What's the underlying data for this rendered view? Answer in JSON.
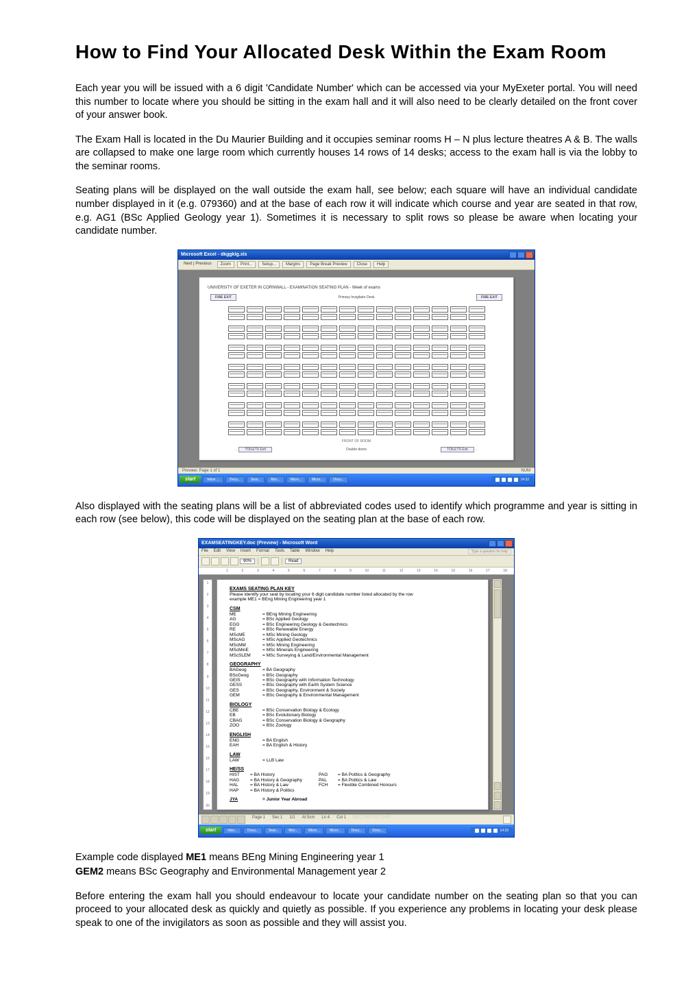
{
  "title": "How to Find Your Allocated Desk Within the Exam Room",
  "para1": "Each year you will be issued with a 6 digit 'Candidate Number' which can be accessed via your MyExeter portal.  You will need this number to locate where you should be sitting in the exam hall and it will also need to be clearly detailed on the front cover of your answer book.",
  "para2": "The Exam Hall is located in the Du Maurier Building and it occupies seminar rooms H – N plus lecture theatres A & B.  The walls are collapsed to make one large room which currently houses 14 rows of 14 desks; access to the exam hall is via the lobby to the seminar rooms.",
  "para3": "Seating plans will be displayed on the wall outside the exam hall, see below; each square will have an individual candidate number displayed in it (e.g. 079360) and at the base of each row it will indicate which course and year are seated in that row, e.g. AG1 (BSc Applied Geology year 1).  Sometimes it is necessary to split rows so please be aware when locating your candidate number.",
  "para4": "Also displayed with the seating plans will be a list of abbreviated codes used to identify which programme and year is sitting in each row (see below), this code will be displayed on the seating plan at the base of each row.",
  "para5a": "Example code displayed ",
  "para5b": "ME1",
  "para5c": " means BEng Mining Engineering year 1",
  "para6a": "GEM2",
  "para6b": "  means BSc Geography and Environmental Management year 2",
  "para7": "Before entering the exam hall you should endeavour to locate your candidate number on the seating plan so that you can proceed to your allocated desk as quickly and quietly as possible.  If you experience any problems in locating your desk please speak to one of the invigilators as soon as possible and they will assist you.",
  "screenshot1": {
    "titlebar": "Microsoft Excel - dkggklg.xls",
    "toolbar_buttons": [
      "Zoom",
      "Print...",
      "Setup...",
      "Margins",
      "Page Break Preview",
      "Close",
      "Help"
    ],
    "doc_heading": "UNIVERSITY OF EXETER IN CORNWALL - EXAMINATION SEATING PLAN - Week of exams",
    "legend_left": "FIRE EXIT",
    "legend_mid": "Primary Invigilator Desk",
    "legend_right": "FIRE EXIT",
    "rows": 14,
    "cols": 14,
    "footer": "FRONT OF ROOM",
    "door_left": "TOILETS Exit",
    "door_mid": "Double doors",
    "door_right": "TOILETS Exit",
    "status_left": "Preview: Page 1 of 1",
    "status_right": "NUM",
    "taskbar": {
      "start": "start",
      "items": [
        "Inbox ...",
        "Docu...",
        "Sear...",
        "Micr...",
        "Micro...",
        "Micro...",
        "Docu..."
      ],
      "tray_time": "14:32"
    },
    "colors": {
      "titlebar_top": "#2a6fd6",
      "titlebar_bottom": "#0b3ea8",
      "taskbar_top": "#3b8afd",
      "taskbar_bottom": "#245edb",
      "start_top": "#5ac24d",
      "start_bottom": "#2a8a1d",
      "chrome": "#ece9d8",
      "docbg": "#808080",
      "page": "#ffffff"
    }
  },
  "screenshot2": {
    "titlebar": "EXAMSEATINGKEY.doc (Preview) - Microsoft Word",
    "menus": [
      "File",
      "Edit",
      "View",
      "Insert",
      "Format",
      "Tools",
      "Table",
      "Window",
      "Help"
    ],
    "type_help": "Type a question for help",
    "zoom": "90%",
    "read": "Read",
    "ruler_marks": [
      "1",
      "2",
      "3",
      "4",
      "5",
      "6",
      "7",
      "8",
      "9",
      "10",
      "11",
      "12",
      "13",
      "14",
      "15",
      "16",
      "17",
      "18"
    ],
    "side_marks": [
      "1",
      "2",
      "3",
      "4",
      "5",
      "6",
      "7",
      "8",
      "9",
      "10",
      "11",
      "12",
      "13",
      "14",
      "15",
      "16",
      "17",
      "18",
      "19",
      "20"
    ],
    "pkey_title": "EXAMS SEATING PLAN KEY",
    "pkey_sub1": "Please identify your seat by locating your 6 digit candidate number listed allocated by the row",
    "pkey_sub2": "example ME1 = BEng Mining Engineering year 1",
    "sections": [
      {
        "title": "CSM",
        "codes": [
          {
            "code": "ME",
            "desc": "= BEng Mining Engineering"
          },
          {
            "code": "AG",
            "desc": "= BSc Applied Geology"
          },
          {
            "code": "EGG",
            "desc": "= BSc Engineering Geology & Geotechnics"
          },
          {
            "code": "RE",
            "desc": "= BSc Renewable Energy"
          },
          {
            "code": "MScME",
            "desc": "= MSc Mining Geology"
          },
          {
            "code": "MScAG",
            "desc": "= MSc Applied Geotechnics"
          },
          {
            "code": "MScMM",
            "desc": "= MSc Mining Engineering"
          },
          {
            "code": "MScMinE",
            "desc": "= MSc Minerals Engineering"
          },
          {
            "code": "MScSLEM",
            "desc": "= MSc Surveying & Land/Environmental Management"
          }
        ]
      },
      {
        "title": "GEOGRAPHY",
        "codes": [
          {
            "code": "BAGeog",
            "desc": "= BA Geography"
          },
          {
            "code": "BScGeog",
            "desc": "= BSc Geography"
          },
          {
            "code": "GEIS",
            "desc": "= BSc Geography with Information Technology"
          },
          {
            "code": "GESS",
            "desc": "= BSc Geography with Earth System Science"
          },
          {
            "code": "GES",
            "desc": "= BSc Geography, Environment & Society"
          },
          {
            "code": "GEM",
            "desc": "= BSc Geography & Environmental Management"
          }
        ]
      },
      {
        "title": "BIOLOGY",
        "codes": [
          {
            "code": "CBE",
            "desc": "= BSc Conservation Biology & Ecology"
          },
          {
            "code": "EB",
            "desc": "= BSc Evolutionary Biology"
          },
          {
            "code": "CBAG",
            "desc": "= BSc Conservation Biology & Geography"
          },
          {
            "code": "ZOO",
            "desc": "= BSc Zoology"
          }
        ]
      },
      {
        "title": "ENGLISH",
        "codes": [
          {
            "code": "ENG",
            "desc": "= BA English"
          },
          {
            "code": "EAH",
            "desc": "= BA English & History"
          }
        ]
      },
      {
        "title": "LAW",
        "codes": [
          {
            "code": "LAW",
            "desc": "= LLB Law"
          }
        ]
      },
      {
        "title": "HE/SS",
        "pairs": [
          {
            "c1": "HIST",
            "d1": "= BA History",
            "c2": "PAG",
            "d2": "= BA Politics & Geography"
          },
          {
            "c1": "HAG",
            "d1": "= BA History & Geography",
            "c2": "PAL",
            "d2": "= BA Politics & Law"
          },
          {
            "c1": "HAL",
            "d1": "= BA History & Law",
            "c2": "FCH",
            "d2": "= Flexible Combined Honours"
          },
          {
            "c1": "HAP",
            "d1": "= BA History & Politics",
            "c2": "",
            "d2": ""
          }
        ]
      }
    ],
    "jya": {
      "code": "JYA",
      "desc": "= Junior Year Abroad"
    },
    "status": {
      "page": "Page 1",
      "sec": "Sec 1",
      "pages": "1/1",
      "at": "At 5cm",
      "ln": "Ln 4",
      "col": "Col 1"
    },
    "taskbar": {
      "start": "start",
      "items": [
        "Inbo...",
        "Docu...",
        "Sear...",
        "Micr...",
        "Micro...",
        "Micro...",
        "Docu...",
        "Docu..."
      ],
      "tray_time": "14:33"
    }
  }
}
